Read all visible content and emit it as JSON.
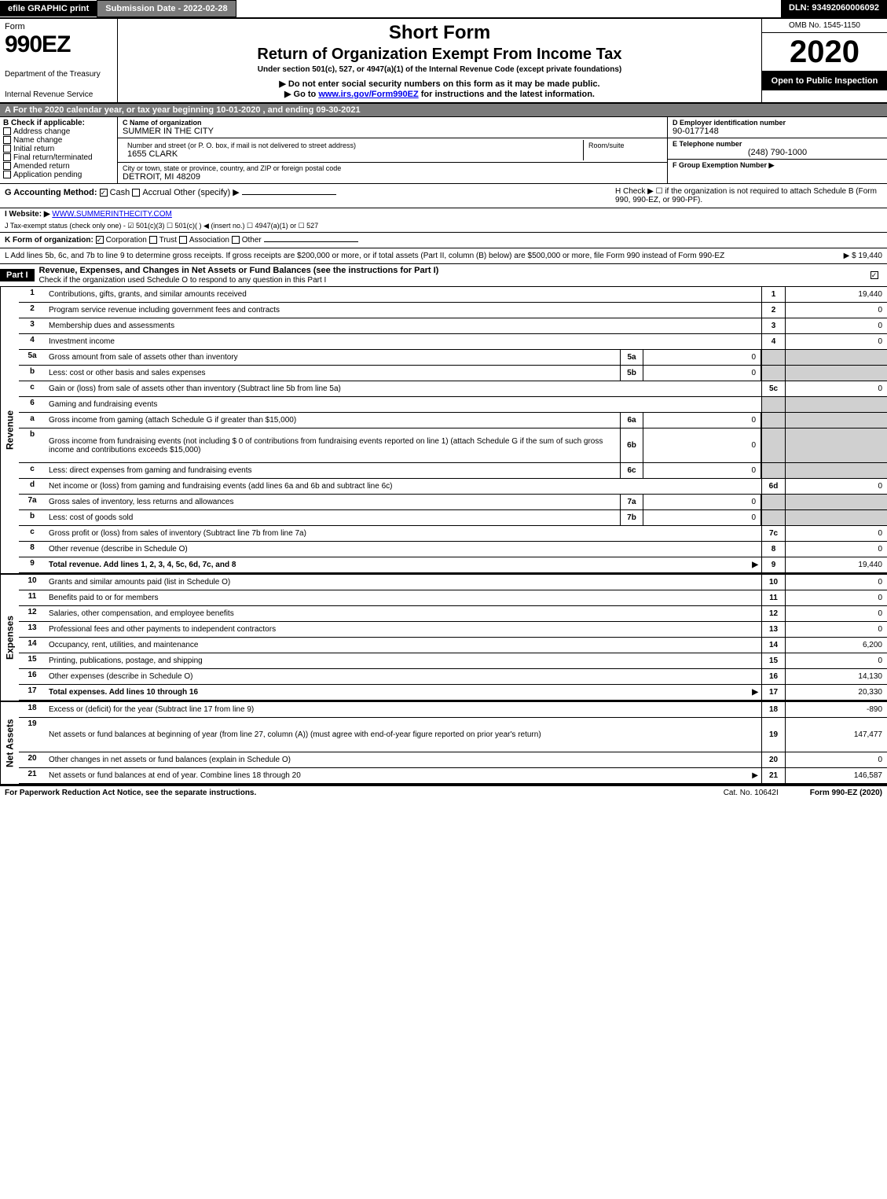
{
  "topbar": {
    "efile": "efile GRAPHIC print",
    "subdate": "Submission Date - 2022-02-28",
    "dln": "DLN: 93492060006092"
  },
  "header": {
    "form_word": "Form",
    "form_num": "990EZ",
    "dept": "Department of the Treasury",
    "irs": "Internal Revenue Service",
    "short_form": "Short Form",
    "return_title": "Return of Organization Exempt From Income Tax",
    "under": "Under section 501(c), 527, or 4947(a)(1) of the Internal Revenue Code (except private foundations)",
    "donot": "▶ Do not enter social security numbers on this form as it may be made public.",
    "goto_prefix": "▶ Go to ",
    "goto_link": "www.irs.gov/Form990EZ",
    "goto_suffix": " for instructions and the latest information.",
    "omb": "OMB No. 1545-1150",
    "year": "2020",
    "open_public": "Open to Public Inspection"
  },
  "period": "A For the 2020 calendar year, or tax year beginning 10-01-2020 , and ending 09-30-2021",
  "b_section": {
    "b_label": "B Check if applicable:",
    "opts": [
      "Address change",
      "Name change",
      "Initial return",
      "Final return/terminated",
      "Amended return",
      "Application pending"
    ]
  },
  "c_section": {
    "c_label": "C Name of organization",
    "name": "SUMMER IN THE CITY",
    "addr_label": "Number and street (or P. O. box, if mail is not delivered to street address)",
    "addr": "1655 CLARK",
    "suite_label": "Room/suite",
    "city_label": "City or town, state or province, country, and ZIP or foreign postal code",
    "city": "DETROIT, MI  48209"
  },
  "d_section": {
    "d_label": "D Employer identification number",
    "ein": "90-0177148",
    "e_label": "E Telephone number",
    "phone": "(248) 790-1000",
    "f_label": "F Group Exemption Number ▶"
  },
  "g_section": {
    "g_label": "G Accounting Method:",
    "cash": "Cash",
    "accrual": "Accrual",
    "other": "Other (specify) ▶",
    "h_text": "H  Check ▶ ☐ if the organization is not required to attach Schedule B (Form 990, 990-EZ, or 990-PF)."
  },
  "i_section": {
    "i_label": "I Website: ▶",
    "website": "WWW.SUMMERINTHECITY.COM"
  },
  "j_section": "J Tax-exempt status (check only one) - ☑ 501(c)(3) ☐ 501(c)(  ) ◀ (insert no.) ☐ 4947(a)(1) or ☐ 527",
  "k_section": {
    "k_label": "K Form of organization:",
    "corp": "Corporation",
    "trust": "Trust",
    "assoc": "Association",
    "other": "Other"
  },
  "l_section": {
    "text": "L Add lines 5b, 6c, and 7b to line 9 to determine gross receipts. If gross receipts are $200,000 or more, or if total assets (Part II, column (B) below) are $500,000 or more, file Form 990 instead of Form 990-EZ",
    "amount": "▶ $ 19,440"
  },
  "part1": {
    "label": "Part I",
    "title": "Revenue, Expenses, and Changes in Net Assets or Fund Balances (see the instructions for Part I)",
    "check_text": "Check if the organization used Schedule O to respond to any question in this Part I"
  },
  "sections": {
    "revenue_label": "Revenue",
    "expenses_label": "Expenses",
    "netassets_label": "Net Assets"
  },
  "lines": [
    {
      "n": "1",
      "d": "Contributions, gifts, grants, and similar amounts received",
      "rb": "1",
      "rv": "19,440"
    },
    {
      "n": "2",
      "d": "Program service revenue including government fees and contracts",
      "rb": "2",
      "rv": "0"
    },
    {
      "n": "3",
      "d": "Membership dues and assessments",
      "rb": "3",
      "rv": "0"
    },
    {
      "n": "4",
      "d": "Investment income",
      "rb": "4",
      "rv": "0"
    },
    {
      "n": "5a",
      "d": "Gross amount from sale of assets other than inventory",
      "ib": "5a",
      "iv": "0",
      "shade": true
    },
    {
      "n": "b",
      "d": "Less: cost or other basis and sales expenses",
      "ib": "5b",
      "iv": "0",
      "shade": true
    },
    {
      "n": "c",
      "d": "Gain or (loss) from sale of assets other than inventory (Subtract line 5b from line 5a)",
      "rb": "5c",
      "rv": "0"
    },
    {
      "n": "6",
      "d": "Gaming and fundraising events",
      "shade": true,
      "noright": true
    },
    {
      "n": "a",
      "d": "Gross income from gaming (attach Schedule G if greater than $15,000)",
      "ib": "6a",
      "iv": "0",
      "shade": true
    },
    {
      "n": "b",
      "d": "Gross income from fundraising events (not including $ 0 of contributions from fundraising events reported on line 1) (attach Schedule G if the sum of such gross income and contributions exceeds $15,000)",
      "ib": "6b",
      "iv": "0",
      "shade": true,
      "tall": true
    },
    {
      "n": "c",
      "d": "Less: direct expenses from gaming and fundraising events",
      "ib": "6c",
      "iv": "0",
      "shade": true
    },
    {
      "n": "d",
      "d": "Net income or (loss) from gaming and fundraising events (add lines 6a and 6b and subtract line 6c)",
      "rb": "6d",
      "rv": "0"
    },
    {
      "n": "7a",
      "d": "Gross sales of inventory, less returns and allowances",
      "ib": "7a",
      "iv": "0",
      "shade": true
    },
    {
      "n": "b",
      "d": "Less: cost of goods sold",
      "ib": "7b",
      "iv": "0",
      "shade": true
    },
    {
      "n": "c",
      "d": "Gross profit or (loss) from sales of inventory (Subtract line 7b from line 7a)",
      "rb": "7c",
      "rv": "0"
    },
    {
      "n": "8",
      "d": "Other revenue (describe in Schedule O)",
      "rb": "8",
      "rv": "0"
    },
    {
      "n": "9",
      "d": "Total revenue. Add lines 1, 2, 3, 4, 5c, 6d, 7c, and 8",
      "rb": "9",
      "rv": "19,440",
      "bold": true,
      "arrow": true
    }
  ],
  "exp_lines": [
    {
      "n": "10",
      "d": "Grants and similar amounts paid (list in Schedule O)",
      "rb": "10",
      "rv": "0"
    },
    {
      "n": "11",
      "d": "Benefits paid to or for members",
      "rb": "11",
      "rv": "0"
    },
    {
      "n": "12",
      "d": "Salaries, other compensation, and employee benefits",
      "rb": "12",
      "rv": "0"
    },
    {
      "n": "13",
      "d": "Professional fees and other payments to independent contractors",
      "rb": "13",
      "rv": "0"
    },
    {
      "n": "14",
      "d": "Occupancy, rent, utilities, and maintenance",
      "rb": "14",
      "rv": "6,200"
    },
    {
      "n": "15",
      "d": "Printing, publications, postage, and shipping",
      "rb": "15",
      "rv": "0"
    },
    {
      "n": "16",
      "d": "Other expenses (describe in Schedule O)",
      "rb": "16",
      "rv": "14,130"
    },
    {
      "n": "17",
      "d": "Total expenses. Add lines 10 through 16",
      "rb": "17",
      "rv": "20,330",
      "bold": true,
      "arrow": true
    }
  ],
  "na_lines": [
    {
      "n": "18",
      "d": "Excess or (deficit) for the year (Subtract line 17 from line 9)",
      "rb": "18",
      "rv": "-890"
    },
    {
      "n": "19",
      "d": "Net assets or fund balances at beginning of year (from line 27, column (A)) (must agree with end-of-year figure reported on prior year's return)",
      "rb": "19",
      "rv": "147,477",
      "tall": true
    },
    {
      "n": "20",
      "d": "Other changes in net assets or fund balances (explain in Schedule O)",
      "rb": "20",
      "rv": "0"
    },
    {
      "n": "21",
      "d": "Net assets or fund balances at end of year. Combine lines 18 through 20",
      "rb": "21",
      "rv": "146,587",
      "arrow": true
    }
  ],
  "footer": {
    "left": "For Paperwork Reduction Act Notice, see the separate instructions.",
    "mid": "Cat. No. 10642I",
    "right": "Form 990-EZ (2020)"
  }
}
